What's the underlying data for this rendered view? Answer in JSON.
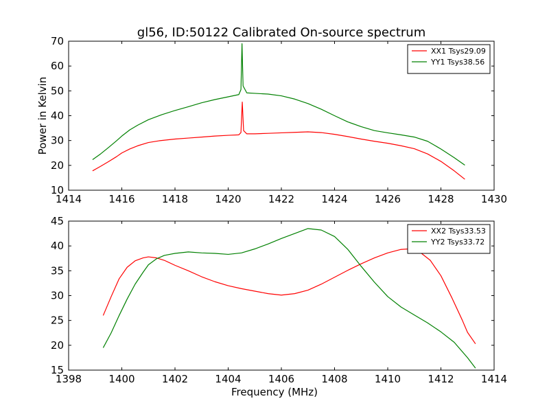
{
  "title": "gl56, ID:50122 Calibrated On-source spectrum",
  "colors": {
    "xx": "#ff0000",
    "yy": "#008000"
  },
  "chart_data": [
    {
      "type": "line",
      "ylabel": "Power in Kelvin",
      "xlabel": "",
      "xlim": [
        1414,
        1430
      ],
      "ylim": [
        10,
        70
      ],
      "xticks": [
        1414,
        1416,
        1418,
        1420,
        1422,
        1424,
        1426,
        1428,
        1430
      ],
      "yticks": [
        10,
        20,
        30,
        40,
        50,
        60,
        70
      ],
      "legend_position": "top-right",
      "series": [
        {
          "name": "XX1 Tsys29.09",
          "color": "#ff0000",
          "points": [
            [
              1414.9,
              17.8
            ],
            [
              1415.2,
              19.6
            ],
            [
              1415.5,
              21.5
            ],
            [
              1415.8,
              23.5
            ],
            [
              1416.0,
              25.0
            ],
            [
              1416.3,
              26.6
            ],
            [
              1416.6,
              27.9
            ],
            [
              1417.0,
              29.2
            ],
            [
              1417.4,
              29.9
            ],
            [
              1418.0,
              30.6
            ],
            [
              1418.5,
              31.0
            ],
            [
              1419.0,
              31.4
            ],
            [
              1419.5,
              31.8
            ],
            [
              1420.0,
              32.1
            ],
            [
              1420.4,
              32.3
            ],
            [
              1420.48,
              33.2
            ],
            [
              1420.53,
              45.5
            ],
            [
              1420.58,
              34.0
            ],
            [
              1420.7,
              32.7
            ],
            [
              1421.0,
              32.7
            ],
            [
              1421.5,
              32.9
            ],
            [
              1422.0,
              33.1
            ],
            [
              1422.5,
              33.3
            ],
            [
              1423.0,
              33.5
            ],
            [
              1423.5,
              33.2
            ],
            [
              1424.0,
              32.5
            ],
            [
              1424.5,
              31.6
            ],
            [
              1425.0,
              30.6
            ],
            [
              1425.5,
              29.7
            ],
            [
              1426.0,
              28.9
            ],
            [
              1426.5,
              27.9
            ],
            [
              1427.0,
              26.7
            ],
            [
              1427.5,
              24.6
            ],
            [
              1428.0,
              21.6
            ],
            [
              1428.5,
              17.8
            ],
            [
              1428.9,
              14.4
            ]
          ]
        },
        {
          "name": "YY1 Tsys38.56",
          "color": "#008000",
          "points": [
            [
              1414.9,
              22.3
            ],
            [
              1415.2,
              24.6
            ],
            [
              1415.5,
              27.2
            ],
            [
              1415.8,
              29.9
            ],
            [
              1416.0,
              31.8
            ],
            [
              1416.3,
              34.3
            ],
            [
              1416.6,
              36.2
            ],
            [
              1417.0,
              38.4
            ],
            [
              1417.5,
              40.4
            ],
            [
              1418.0,
              42.1
            ],
            [
              1418.5,
              43.6
            ],
            [
              1419.0,
              45.2
            ],
            [
              1419.5,
              46.5
            ],
            [
              1420.0,
              47.6
            ],
            [
              1420.4,
              48.5
            ],
            [
              1420.48,
              50.5
            ],
            [
              1420.52,
              69.0
            ],
            [
              1420.56,
              52.0
            ],
            [
              1420.7,
              49.2
            ],
            [
              1421.0,
              49.0
            ],
            [
              1421.5,
              48.7
            ],
            [
              1422.0,
              48.0
            ],
            [
              1422.5,
              46.7
            ],
            [
              1423.0,
              44.9
            ],
            [
              1423.5,
              42.6
            ],
            [
              1424.0,
              40.0
            ],
            [
              1424.5,
              37.5
            ],
            [
              1425.0,
              35.6
            ],
            [
              1425.5,
              34.0
            ],
            [
              1426.0,
              33.1
            ],
            [
              1426.5,
              32.3
            ],
            [
              1427.0,
              31.4
            ],
            [
              1427.5,
              29.7
            ],
            [
              1428.0,
              26.6
            ],
            [
              1428.5,
              23.1
            ],
            [
              1428.9,
              20.1
            ]
          ]
        }
      ]
    },
    {
      "type": "line",
      "ylabel": "",
      "xlabel": "Frequency (MHz)",
      "xlim": [
        1398,
        1414
      ],
      "ylim": [
        15,
        45
      ],
      "xticks": [
        1398,
        1400,
        1402,
        1404,
        1406,
        1408,
        1410,
        1412,
        1414
      ],
      "yticks": [
        15,
        20,
        25,
        30,
        35,
        40,
        45
      ],
      "legend_position": "top-right",
      "series": [
        {
          "name": "XX2 Tsys33.53",
          "color": "#ff0000",
          "points": [
            [
              1399.3,
              26.0
            ],
            [
              1399.6,
              29.8
            ],
            [
              1399.9,
              33.4
            ],
            [
              1400.2,
              35.7
            ],
            [
              1400.5,
              37.0
            ],
            [
              1400.8,
              37.6
            ],
            [
              1401.0,
              37.8
            ],
            [
              1401.3,
              37.6
            ],
            [
              1401.6,
              37.1
            ],
            [
              1402.0,
              36.1
            ],
            [
              1402.5,
              35.0
            ],
            [
              1403.0,
              33.8
            ],
            [
              1403.5,
              32.8
            ],
            [
              1404.0,
              32.0
            ],
            [
              1404.5,
              31.4
            ],
            [
              1405.0,
              30.9
            ],
            [
              1405.5,
              30.4
            ],
            [
              1406.0,
              30.1
            ],
            [
              1406.5,
              30.4
            ],
            [
              1407.0,
              31.1
            ],
            [
              1407.5,
              32.3
            ],
            [
              1408.0,
              33.7
            ],
            [
              1408.5,
              35.1
            ],
            [
              1409.0,
              36.4
            ],
            [
              1409.5,
              37.6
            ],
            [
              1410.0,
              38.6
            ],
            [
              1410.5,
              39.3
            ],
            [
              1410.8,
              39.4
            ],
            [
              1411.2,
              38.8
            ],
            [
              1411.6,
              37.1
            ],
            [
              1412.0,
              34.0
            ],
            [
              1412.4,
              29.7
            ],
            [
              1412.8,
              25.1
            ],
            [
              1413.0,
              22.6
            ],
            [
              1413.3,
              20.3
            ]
          ]
        },
        {
          "name": "YY2 Tsys33.72",
          "color": "#008000",
          "points": [
            [
              1399.3,
              19.5
            ],
            [
              1399.6,
              22.5
            ],
            [
              1399.9,
              26.0
            ],
            [
              1400.2,
              29.3
            ],
            [
              1400.5,
              32.3
            ],
            [
              1400.8,
              34.7
            ],
            [
              1401.0,
              36.2
            ],
            [
              1401.3,
              37.4
            ],
            [
              1401.6,
              38.1
            ],
            [
              1402.0,
              38.5
            ],
            [
              1402.5,
              38.8
            ],
            [
              1403.0,
              38.6
            ],
            [
              1403.5,
              38.5
            ],
            [
              1404.0,
              38.3
            ],
            [
              1404.5,
              38.6
            ],
            [
              1405.0,
              39.4
            ],
            [
              1405.5,
              40.4
            ],
            [
              1406.0,
              41.5
            ],
            [
              1406.5,
              42.5
            ],
            [
              1407.0,
              43.5
            ],
            [
              1407.5,
              43.2
            ],
            [
              1408.0,
              41.9
            ],
            [
              1408.5,
              39.3
            ],
            [
              1409.0,
              35.9
            ],
            [
              1409.5,
              32.7
            ],
            [
              1410.0,
              29.8
            ],
            [
              1410.5,
              27.7
            ],
            [
              1411.0,
              26.1
            ],
            [
              1411.5,
              24.5
            ],
            [
              1412.0,
              22.7
            ],
            [
              1412.5,
              20.6
            ],
            [
              1413.0,
              17.5
            ],
            [
              1413.3,
              15.4
            ]
          ]
        }
      ]
    }
  ]
}
